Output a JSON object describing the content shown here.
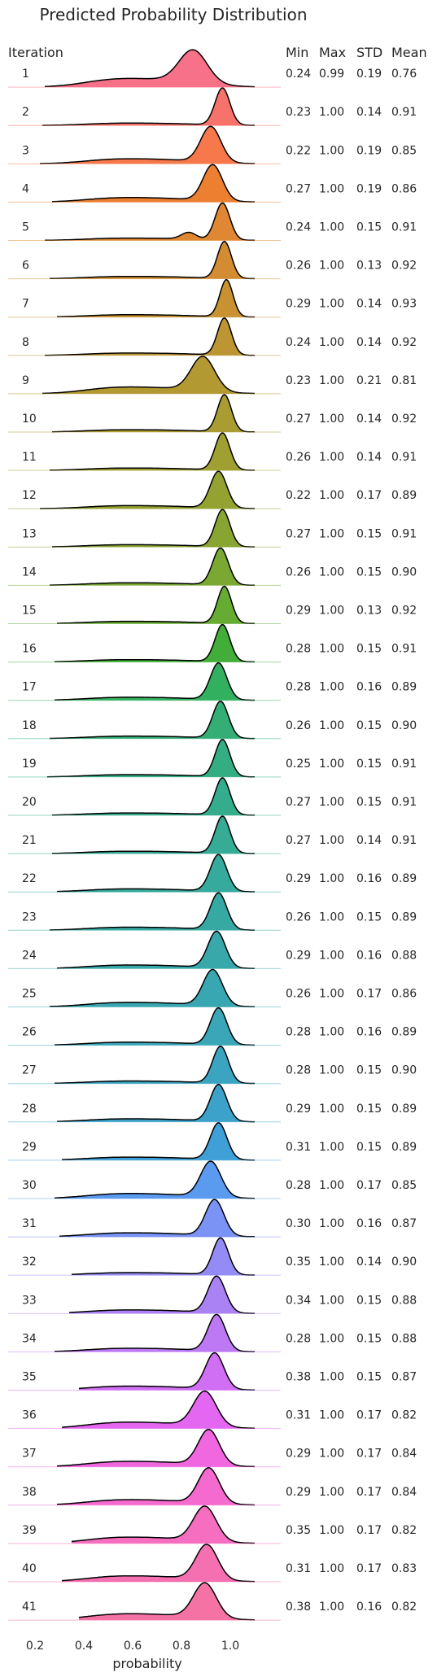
{
  "chart_data": {
    "type": "ridgeline",
    "title": "Predicted Probability Distribution",
    "row_header": "Iteration",
    "stat_headers": [
      "Min",
      "Max",
      "STD",
      "Mean"
    ],
    "xlabel": "probability",
    "xticks": [
      "0.2",
      "0.4",
      "0.6",
      "0.8",
      "1.0"
    ],
    "xlim": [
      0.1,
      1.2
    ],
    "iterations": [
      {
        "label": "1",
        "min": "0.24",
        "max": "0.99",
        "std": "0.19",
        "mean": "0.76",
        "color": "#f77189"
      },
      {
        "label": "2",
        "min": "0.23",
        "max": "1.00",
        "std": "0.14",
        "mean": "0.91",
        "color": "#f7726a"
      },
      {
        "label": "3",
        "min": "0.22",
        "max": "1.00",
        "std": "0.19",
        "mean": "0.85",
        "color": "#f6784b"
      },
      {
        "label": "4",
        "min": "0.27",
        "max": "1.00",
        "std": "0.19",
        "mean": "0.86",
        "color": "#ed7f31"
      },
      {
        "label": "5",
        "min": "0.24",
        "max": "1.00",
        "std": "0.15",
        "mean": "0.91",
        "color": "#df8732"
      },
      {
        "label": "6",
        "min": "0.26",
        "max": "1.00",
        "std": "0.13",
        "mean": "0.92",
        "color": "#d38c32"
      },
      {
        "label": "7",
        "min": "0.29",
        "max": "1.00",
        "std": "0.14",
        "mean": "0.93",
        "color": "#c89132"
      },
      {
        "label": "8",
        "min": "0.24",
        "max": "1.00",
        "std": "0.14",
        "mean": "0.92",
        "color": "#bd9532"
      },
      {
        "label": "9",
        "min": "0.23",
        "max": "1.00",
        "std": "0.21",
        "mean": "0.81",
        "color": "#b39932"
      },
      {
        "label": "10",
        "min": "0.27",
        "max": "1.00",
        "std": "0.14",
        "mean": "0.92",
        "color": "#a99c32"
      },
      {
        "label": "11",
        "min": "0.26",
        "max": "1.00",
        "std": "0.14",
        "mean": "0.91",
        "color": "#9f9f32"
      },
      {
        "label": "12",
        "min": "0.22",
        "max": "1.00",
        "std": "0.17",
        "mean": "0.89",
        "color": "#94a232"
      },
      {
        "label": "13",
        "min": "0.27",
        "max": "1.00",
        "std": "0.15",
        "mean": "0.91",
        "color": "#88a532"
      },
      {
        "label": "14",
        "min": "0.26",
        "max": "1.00",
        "std": "0.15",
        "mean": "0.90",
        "color": "#7aa832"
      },
      {
        "label": "15",
        "min": "0.29",
        "max": "1.00",
        "std": "0.13",
        "mean": "0.92",
        "color": "#66ab32"
      },
      {
        "label": "16",
        "min": "0.28",
        "max": "1.00",
        "std": "0.15",
        "mean": "0.91",
        "color": "#42ae39"
      },
      {
        "label": "17",
        "min": "0.28",
        "max": "1.00",
        "std": "0.16",
        "mean": "0.89",
        "color": "#33b05f"
      },
      {
        "label": "18",
        "min": "0.26",
        "max": "1.00",
        "std": "0.15",
        "mean": "0.90",
        "color": "#34ae75"
      },
      {
        "label": "19",
        "min": "0.25",
        "max": "1.00",
        "std": "0.15",
        "mean": "0.91",
        "color": "#35ad82"
      },
      {
        "label": "20",
        "min": "0.27",
        "max": "1.00",
        "std": "0.15",
        "mean": "0.91",
        "color": "#35ac8c"
      },
      {
        "label": "21",
        "min": "0.27",
        "max": "1.00",
        "std": "0.14",
        "mean": "0.91",
        "color": "#36ab95"
      },
      {
        "label": "22",
        "min": "0.29",
        "max": "1.00",
        "std": "0.16",
        "mean": "0.89",
        "color": "#36aa9c"
      },
      {
        "label": "23",
        "min": "0.26",
        "max": "1.00",
        "std": "0.15",
        "mean": "0.89",
        "color": "#37a9a3"
      },
      {
        "label": "24",
        "min": "0.29",
        "max": "1.00",
        "std": "0.16",
        "mean": "0.88",
        "color": "#38a8aa"
      },
      {
        "label": "25",
        "min": "0.26",
        "max": "1.00",
        "std": "0.17",
        "mean": "0.86",
        "color": "#39a7b1"
      },
      {
        "label": "26",
        "min": "0.28",
        "max": "1.00",
        "std": "0.16",
        "mean": "0.89",
        "color": "#3aa6b8"
      },
      {
        "label": "27",
        "min": "0.28",
        "max": "1.00",
        "std": "0.15",
        "mean": "0.90",
        "color": "#3ba4c0"
      },
      {
        "label": "28",
        "min": "0.29",
        "max": "1.00",
        "std": "0.15",
        "mean": "0.89",
        "color": "#3da2ca"
      },
      {
        "label": "29",
        "min": "0.31",
        "max": "1.00",
        "std": "0.15",
        "mean": "0.89",
        "color": "#3f9fd7"
      },
      {
        "label": "30",
        "min": "0.28",
        "max": "1.00",
        "std": "0.17",
        "mean": "0.85",
        "color": "#5a9bf0"
      },
      {
        "label": "31",
        "min": "0.30",
        "max": "1.00",
        "std": "0.16",
        "mean": "0.87",
        "color": "#7a93f4"
      },
      {
        "label": "32",
        "min": "0.35",
        "max": "1.00",
        "std": "0.14",
        "mean": "0.90",
        "color": "#958bf4"
      },
      {
        "label": "33",
        "min": "0.34",
        "max": "1.00",
        "std": "0.15",
        "mean": "0.88",
        "color": "#aa82f4"
      },
      {
        "label": "34",
        "min": "0.28",
        "max": "1.00",
        "std": "0.15",
        "mean": "0.88",
        "color": "#bd79f4"
      },
      {
        "label": "35",
        "min": "0.38",
        "max": "1.00",
        "std": "0.15",
        "mean": "0.87",
        "color": "#d06ef4"
      },
      {
        "label": "36",
        "min": "0.31",
        "max": "1.00",
        "std": "0.17",
        "mean": "0.82",
        "color": "#e367f0"
      },
      {
        "label": "37",
        "min": "0.29",
        "max": "1.00",
        "std": "0.17",
        "mean": "0.84",
        "color": "#f067e0"
      },
      {
        "label": "38",
        "min": "0.29",
        "max": "1.00",
        "std": "0.17",
        "mean": "0.84",
        "color": "#f46acf"
      },
      {
        "label": "39",
        "min": "0.35",
        "max": "1.00",
        "std": "0.17",
        "mean": "0.82",
        "color": "#f56ebf"
      },
      {
        "label": "40",
        "min": "0.31",
        "max": "1.00",
        "std": "0.17",
        "mean": "0.83",
        "color": "#f570b1"
      },
      {
        "label": "41",
        "min": "0.38",
        "max": "1.00",
        "std": "0.16",
        "mean": "0.82",
        "color": "#f572a4"
      }
    ]
  }
}
